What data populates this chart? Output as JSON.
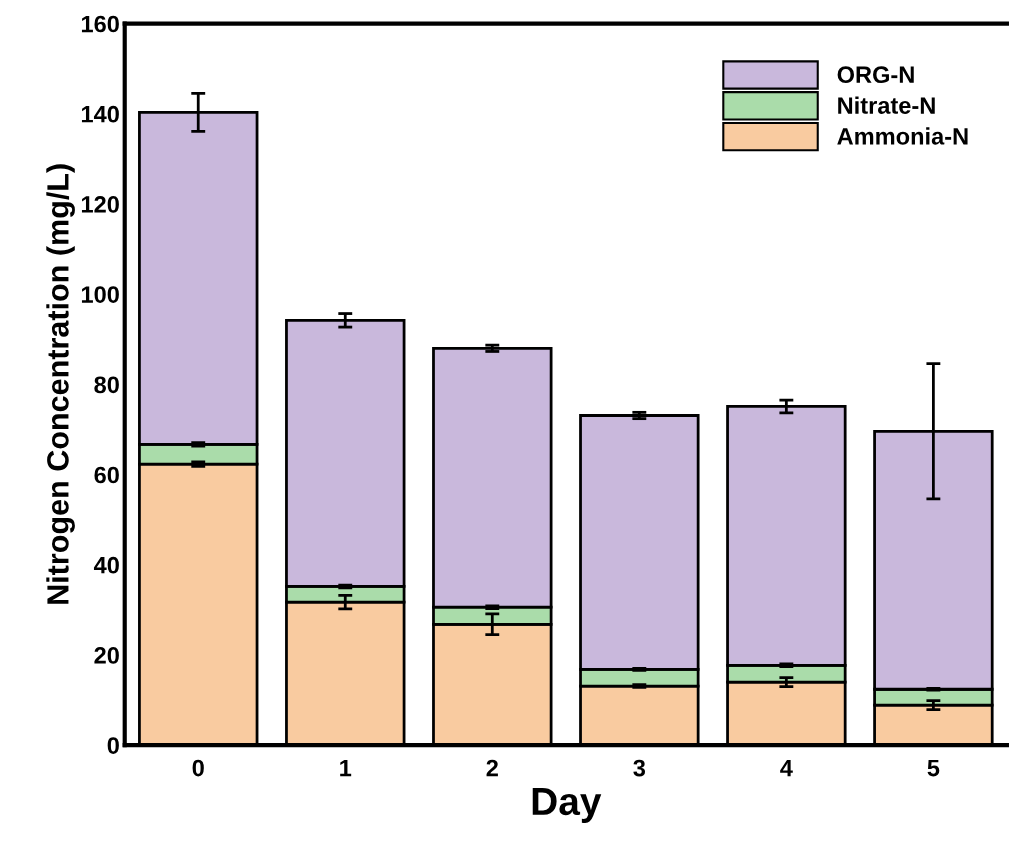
{
  "chart_data": {
    "type": "bar",
    "stacked": true,
    "xlabel": "Day",
    "ylabel": "Nitrogen Concentration (mg/L)",
    "categories": [
      "0",
      "1",
      "2",
      "3",
      "4",
      "5"
    ],
    "series": [
      {
        "name": "Ammonia-N",
        "color": "#f9cba0",
        "values": [
          62.3,
          31.7,
          26.8,
          13.1,
          14.0,
          8.9
        ],
        "errors": [
          0.5,
          1.5,
          2.3,
          0.3,
          1.0,
          1.0
        ]
      },
      {
        "name": "Nitrate-N",
        "color": "#aadcaa",
        "values": [
          4.4,
          3.5,
          3.8,
          3.7,
          3.7,
          3.5
        ],
        "errors": [
          0.4,
          0.3,
          0.3,
          0.2,
          0.3,
          0.2
        ]
      },
      {
        "name": "ORG-N",
        "color": "#c9b8dc",
        "values": [
          73.6,
          59.0,
          57.4,
          56.3,
          57.4,
          57.2
        ],
        "errors": [
          4.2,
          1.5,
          0.7,
          0.7,
          1.4,
          15.0
        ]
      }
    ],
    "ylim": [
      0,
      160
    ],
    "yticks": [
      0,
      20,
      40,
      60,
      80,
      100,
      120,
      140,
      160
    ],
    "legend": "top right",
    "grid": false
  }
}
